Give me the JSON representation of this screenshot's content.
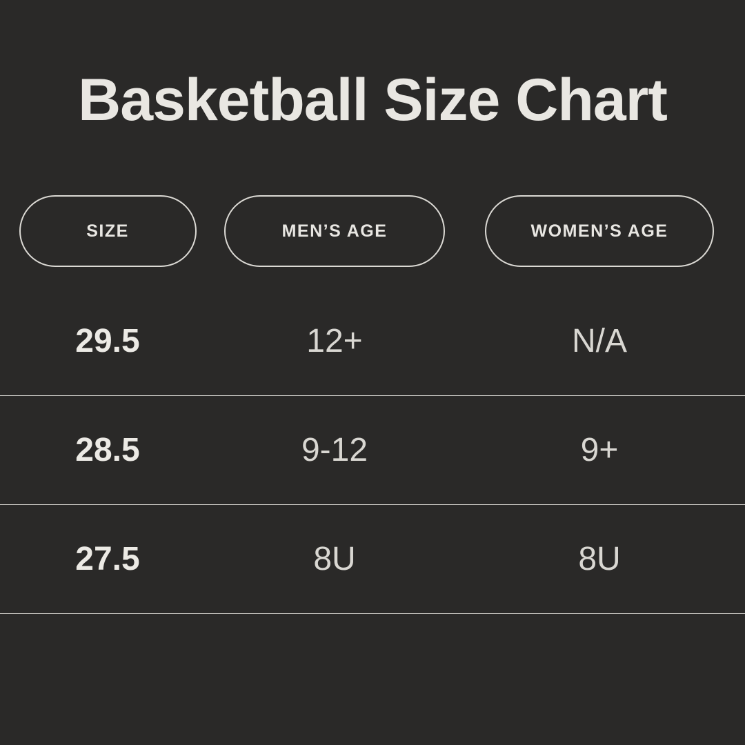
{
  "page": {
    "title": "Basketball Size Chart"
  },
  "colors": {
    "background": "#2a2928",
    "title_text": "#e9e7e2",
    "pill_border": "#dbd9d4",
    "size_value_text": "#eceae5",
    "age_value_text": "#d9d7d2",
    "divider_line": "#ded8d7"
  },
  "table": {
    "columns": [
      {
        "label": "SIZE"
      },
      {
        "label": "MEN’S AGE"
      },
      {
        "label": "WOMEN’S AGE"
      }
    ],
    "rows": [
      {
        "size": "29.5",
        "mens_age": "12+",
        "womens_age": "N/A"
      },
      {
        "size": "28.5",
        "mens_age": "9-12",
        "womens_age": "9+"
      },
      {
        "size": "27.5",
        "mens_age": "8U",
        "womens_age": "8U"
      }
    ]
  },
  "chart_data": {
    "type": "table",
    "title": "Basketball Size Chart",
    "columns": [
      "SIZE",
      "MEN’S AGE",
      "WOMEN’S AGE"
    ],
    "rows": [
      [
        "29.5",
        "12+",
        "N/A"
      ],
      [
        "28.5",
        "9-12",
        "9+"
      ],
      [
        "27.5",
        "8U",
        "8U"
      ]
    ]
  }
}
